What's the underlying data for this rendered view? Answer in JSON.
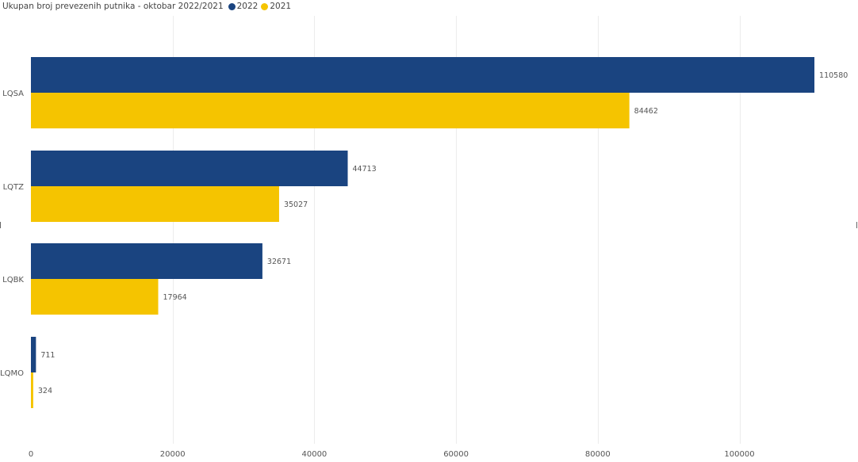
{
  "chart_data": {
    "type": "bar",
    "orientation": "horizontal",
    "title": "Ukupan broj prevezenih putnika - oktobar 2022/2021",
    "categories": [
      "LQSA",
      "LQTZ",
      "LQBK",
      "LQMO"
    ],
    "series": [
      {
        "name": "2022",
        "color": "#1a4480",
        "values": [
          110580,
          44713,
          32671,
          711
        ]
      },
      {
        "name": "2021",
        "color": "#f5c400",
        "values": [
          84462,
          35027,
          17964,
          324
        ]
      }
    ],
    "x_ticks": [
      0,
      20000,
      40000,
      60000,
      80000,
      100000
    ],
    "x_tick_labels": [
      "0",
      "20000",
      "40000",
      "60000",
      "80000",
      "100000"
    ],
    "xlim": [
      0,
      117000
    ],
    "xlabel": "",
    "ylabel": "",
    "grid": true,
    "legend_position": "top-left",
    "data_labels": true
  }
}
